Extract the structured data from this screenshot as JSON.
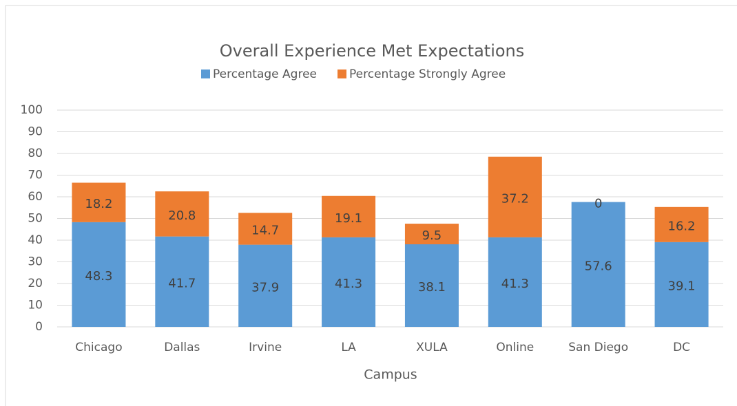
{
  "chart_data": {
    "type": "stacked_bar",
    "title": "Overall Experience Met Expectations",
    "x_label": "Campus",
    "categories": [
      "Chicago",
      "Dallas",
      "Irvine",
      "LA",
      "XULA",
      "Online",
      "San Diego",
      "DC"
    ],
    "series": [
      {
        "name": "Percentage Agree",
        "color": "#5b9bd5",
        "values": [
          48.3,
          41.7,
          37.9,
          41.3,
          38.1,
          41.3,
          57.6,
          39.1
        ]
      },
      {
        "name": "Percentage Strongly Agree",
        "color": "#ed7d31",
        "values": [
          18.2,
          20.8,
          14.7,
          19.1,
          9.5,
          37.2,
          0,
          16.2
        ]
      }
    ],
    "ylim": [
      0,
      100
    ],
    "yticks": [
      0,
      10,
      20,
      30,
      40,
      50,
      60,
      70,
      80,
      90,
      100
    ],
    "grid": true,
    "legend": "top"
  }
}
